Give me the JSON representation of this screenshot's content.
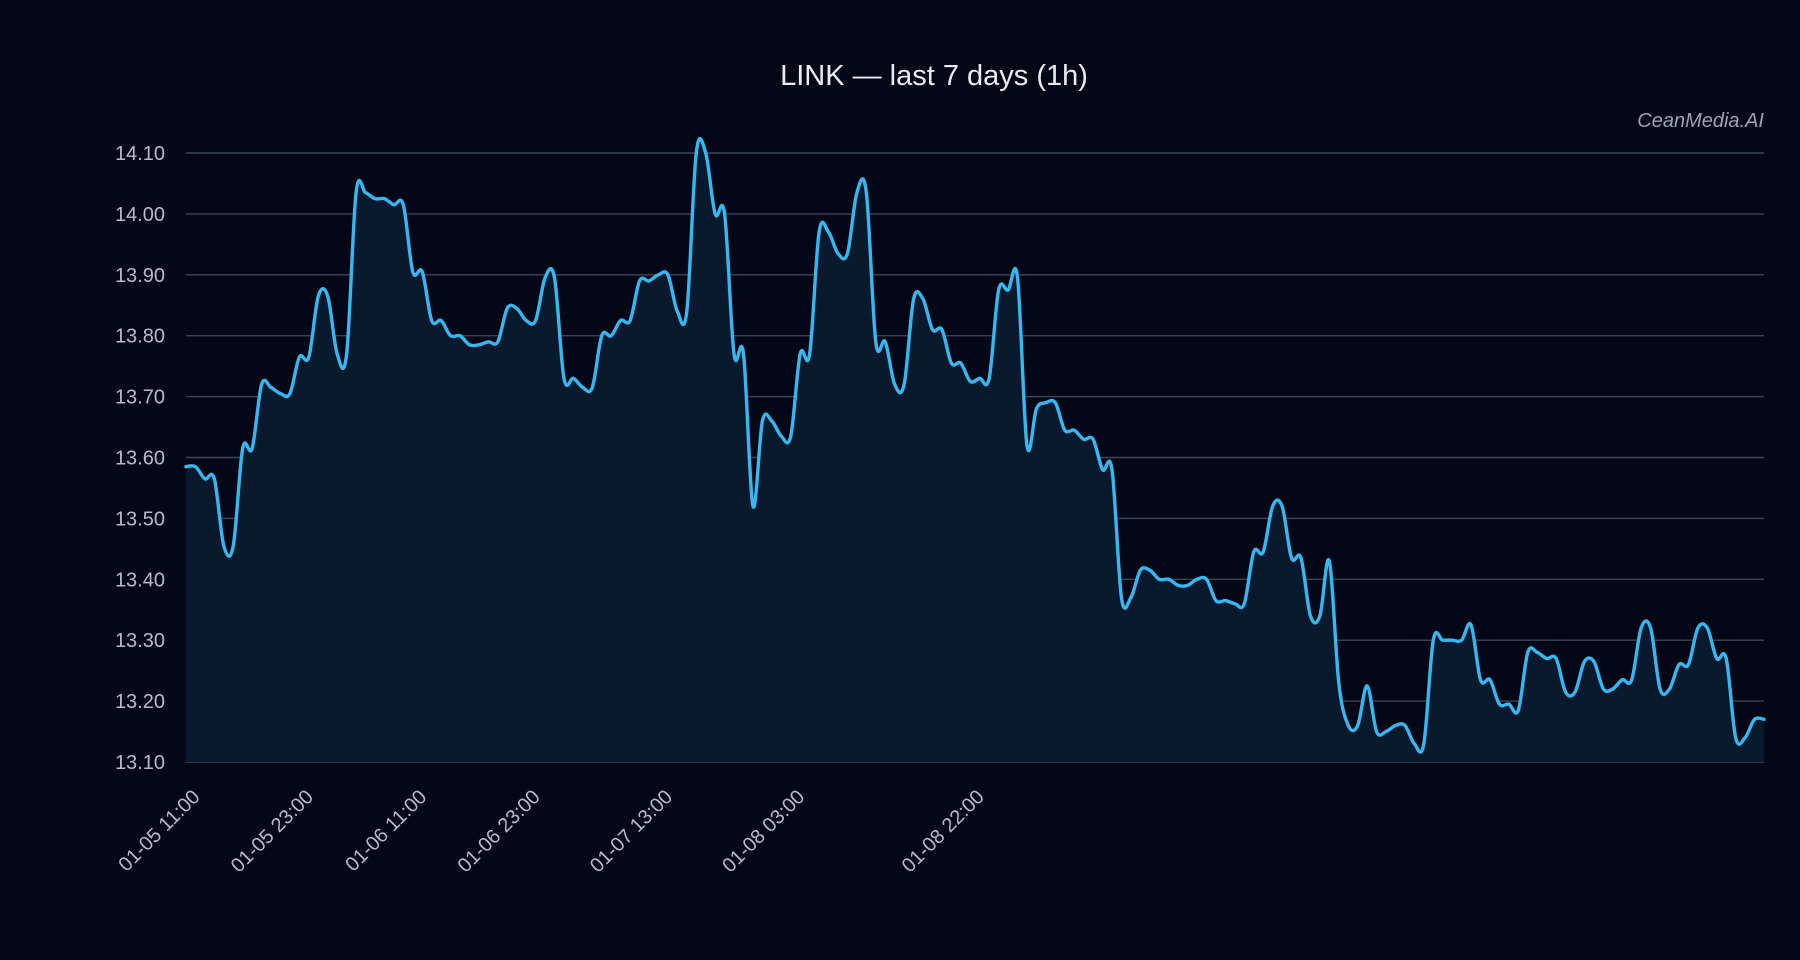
{
  "chart_data": {
    "type": "area",
    "title": "LINK — last 7 days (1h)",
    "xlabel": "",
    "ylabel": "",
    "watermark": "CeanMedia.AI",
    "ylim": [
      13.1,
      14.1
    ],
    "yticks": [
      "14.10",
      "14.00",
      "13.90",
      "13.80",
      "13.70",
      "13.60",
      "13.50",
      "13.40",
      "13.30",
      "13.20",
      "13.10"
    ],
    "x_start": "01-05 11:00",
    "x_interval": "1h",
    "xticks": [
      "01-05 11:00",
      "01-05 23:00",
      "01-06 11:00",
      "01-06 23:00",
      "01-07 13:00",
      "01-08 03:00",
      "01-08 22:00"
    ],
    "grid": true,
    "legend": "none",
    "colors": {
      "line": "#38b6f0",
      "fill": "#0a1a2e",
      "background": "#040816",
      "grid": "#3a4656"
    },
    "series": [
      {
        "values": [
          13.585,
          13.585,
          13.565,
          13.565,
          13.455,
          13.455,
          13.615,
          13.615,
          13.72,
          13.715,
          13.705,
          13.705,
          13.765,
          13.765,
          13.865,
          13.865,
          13.77,
          13.77,
          14.035,
          14.035,
          14.025,
          14.025,
          14.015,
          14.015,
          13.905,
          13.905,
          13.825,
          13.825,
          13.8,
          13.8,
          13.785,
          13.785,
          13.79,
          13.79,
          13.845,
          13.845,
          13.825,
          13.825,
          13.895,
          13.895,
          13.73,
          13.73,
          13.715,
          13.715,
          13.8,
          13.8,
          13.825,
          13.825,
          13.89,
          13.89,
          13.9,
          13.9,
          13.84,
          13.84,
          14.1,
          14.1,
          14.0,
          14.0,
          13.77,
          13.77,
          13.52,
          13.66,
          13.66,
          13.635,
          13.635,
          13.77,
          13.77,
          13.97,
          13.97,
          13.935,
          13.935,
          14.035,
          14.035,
          13.79,
          13.79,
          13.72,
          13.72,
          13.86,
          13.86,
          13.81,
          13.81,
          13.755,
          13.755,
          13.725,
          13.73,
          13.73,
          13.875,
          13.875,
          13.895,
          13.62,
          13.68,
          13.69,
          13.69,
          13.645,
          13.645,
          13.63,
          13.63,
          13.58,
          13.58,
          13.37,
          13.37,
          13.415,
          13.415,
          13.4,
          13.4,
          13.39,
          13.39,
          13.4,
          13.4,
          13.365,
          13.365,
          13.36,
          13.36,
          13.445,
          13.445,
          13.52,
          13.52,
          13.435,
          13.435,
          13.34,
          13.34,
          13.43,
          13.23,
          13.16,
          13.16,
          13.225,
          13.15,
          13.15,
          13.16,
          13.16,
          13.13,
          13.13,
          13.3,
          13.3,
          13.3,
          13.3,
          13.325,
          13.235,
          13.235,
          13.195,
          13.195,
          13.185,
          13.28,
          13.28,
          13.27,
          13.27,
          13.215,
          13.215,
          13.265,
          13.265,
          13.22,
          13.22,
          13.235,
          13.235,
          13.32,
          13.32,
          13.22,
          13.22,
          13.26,
          13.26,
          13.32,
          13.32,
          13.27,
          13.27,
          13.14,
          13.14,
          13.17,
          13.17
        ]
      }
    ]
  }
}
